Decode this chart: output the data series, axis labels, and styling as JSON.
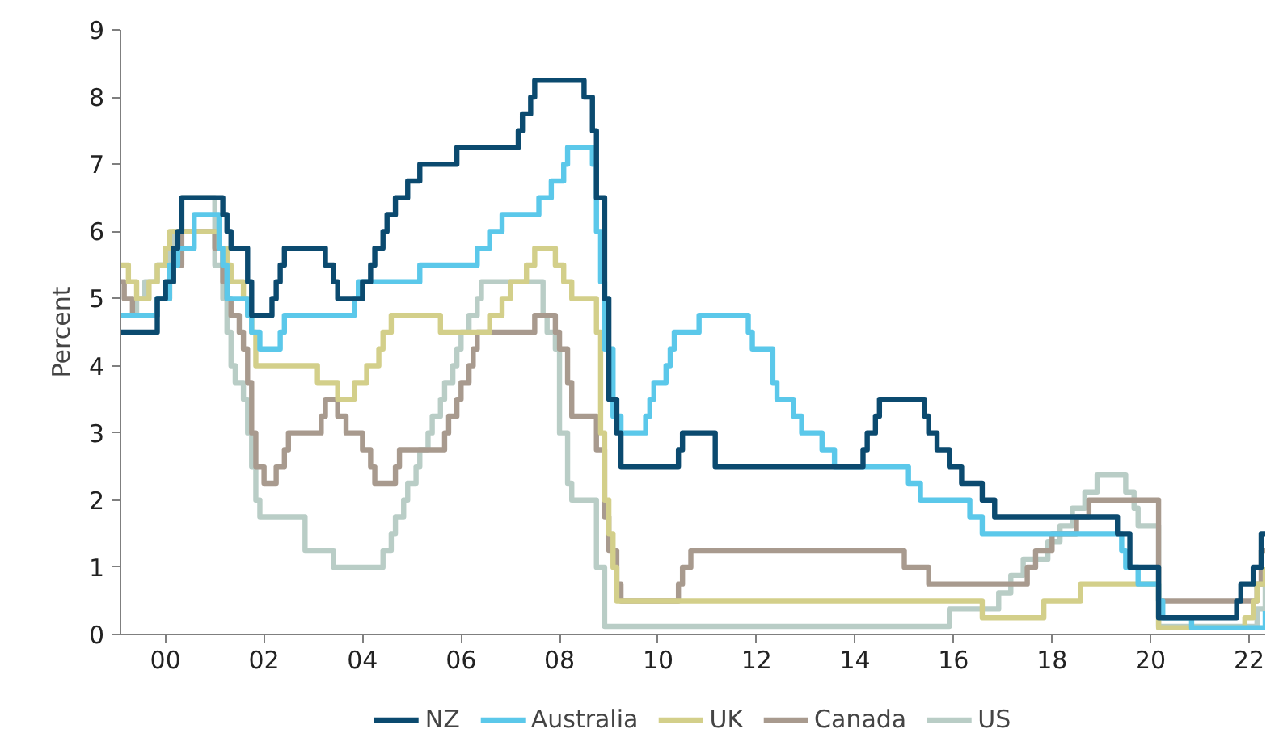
{
  "chart_data": {
    "type": "step",
    "ylabel": "Percent",
    "xlim": [
      "1999-02",
      "2022-05"
    ],
    "ylim": [
      0,
      9
    ],
    "yticks": [
      0,
      1,
      2,
      3,
      4,
      5,
      6,
      7,
      8,
      9
    ],
    "xticks": [
      {
        "value": "2000-01",
        "label": "00"
      },
      {
        "value": "2002-01",
        "label": "02"
      },
      {
        "value": "2004-01",
        "label": "04"
      },
      {
        "value": "2006-01",
        "label": "06"
      },
      {
        "value": "2008-01",
        "label": "08"
      },
      {
        "value": "2010-01",
        "label": "10"
      },
      {
        "value": "2012-01",
        "label": "12"
      },
      {
        "value": "2014-01",
        "label": "14"
      },
      {
        "value": "2016-01",
        "label": "16"
      },
      {
        "value": "2018-01",
        "label": "18"
      },
      {
        "value": "2020-01",
        "label": "20"
      },
      {
        "value": "2022-01",
        "label": "22"
      }
    ],
    "grid": false,
    "legend": "bottom",
    "marker": "none",
    "line_style": "solid",
    "series": [
      {
        "name": "NZ",
        "color": "#0b4a6f",
        "x": [
          "1999-02",
          "1999-11",
          "2000-01",
          "2000-03",
          "2000-04",
          "2000-05",
          "2001-03",
          "2001-04",
          "2001-05",
          "2001-09",
          "2001-10",
          "2002-03",
          "2002-04",
          "2002-05",
          "2002-06",
          "2003-04",
          "2003-06",
          "2003-07",
          "2004-01",
          "2004-03",
          "2004-04",
          "2004-06",
          "2004-07",
          "2004-09",
          "2004-12",
          "2005-03",
          "2005-12",
          "2007-03",
          "2007-04",
          "2007-06",
          "2007-07",
          "2008-07",
          "2008-09",
          "2008-10",
          "2008-12",
          "2009-01",
          "2009-03",
          "2009-04",
          "2010-06",
          "2010-07",
          "2011-03",
          "2014-03",
          "2014-04",
          "2014-06",
          "2014-07",
          "2015-06",
          "2015-07",
          "2015-09",
          "2015-12",
          "2016-03",
          "2016-08",
          "2016-11",
          "2019-05",
          "2019-08",
          "2020-03",
          "2021-10",
          "2021-11",
          "2022-02",
          "2022-04",
          "2022-05"
        ],
        "values": [
          4.5,
          5.0,
          5.25,
          5.75,
          6.0,
          6.5,
          6.25,
          6.0,
          5.75,
          5.25,
          4.75,
          5.0,
          5.25,
          5.5,
          5.75,
          5.5,
          5.25,
          5.0,
          5.25,
          5.5,
          5.75,
          6.0,
          6.25,
          6.5,
          6.75,
          7.0,
          7.25,
          7.5,
          7.75,
          8.0,
          8.25,
          8.0,
          7.5,
          6.5,
          5.0,
          3.5,
          3.0,
          2.5,
          2.75,
          3.0,
          2.5,
          2.75,
          3.0,
          3.25,
          3.5,
          3.25,
          3.0,
          2.75,
          2.5,
          2.25,
          2.0,
          1.75,
          1.5,
          1.0,
          0.25,
          0.5,
          0.75,
          1.0,
          1.5,
          1.5
        ]
      },
      {
        "name": "Australia",
        "color": "#5bc8ea",
        "x": [
          "1999-02",
          "1999-11",
          "2000-02",
          "2000-04",
          "2000-08",
          "2001-02",
          "2001-03",
          "2001-04",
          "2001-09",
          "2001-10",
          "2001-12",
          "2002-05",
          "2002-06",
          "2003-11",
          "2003-12",
          "2005-03",
          "2006-05",
          "2006-08",
          "2006-11",
          "2007-08",
          "2007-11",
          "2008-02",
          "2008-03",
          "2008-09",
          "2008-10",
          "2008-11",
          "2008-12",
          "2009-02",
          "2009-04",
          "2009-10",
          "2009-11",
          "2009-12",
          "2010-03",
          "2010-04",
          "2010-05",
          "2010-11",
          "2011-11",
          "2011-12",
          "2012-05",
          "2012-06",
          "2012-10",
          "2012-12",
          "2013-05",
          "2013-08",
          "2015-02",
          "2015-05",
          "2016-05",
          "2016-08",
          "2019-06",
          "2019-07",
          "2019-10",
          "2020-03",
          "2020-04",
          "2020-11",
          "2022-05"
        ],
        "values": [
          4.75,
          5.0,
          5.5,
          5.75,
          6.25,
          5.75,
          5.5,
          5.0,
          4.75,
          4.5,
          4.25,
          4.5,
          4.75,
          5.0,
          5.25,
          5.5,
          5.75,
          6.0,
          6.25,
          6.5,
          6.75,
          7.0,
          7.25,
          7.0,
          6.0,
          5.25,
          4.25,
          3.25,
          3.0,
          3.25,
          3.5,
          3.75,
          4.0,
          4.25,
          4.5,
          4.75,
          4.5,
          4.25,
          3.75,
          3.5,
          3.25,
          3.0,
          2.75,
          2.5,
          2.25,
          2.0,
          1.75,
          1.5,
          1.25,
          1.0,
          0.75,
          0.5,
          0.25,
          0.1,
          0.35
        ]
      },
      {
        "name": "UK",
        "color": "#d3cf8a",
        "x": [
          "1999-02",
          "1999-04",
          "1999-06",
          "1999-09",
          "1999-11",
          "2000-01",
          "2000-02",
          "2001-02",
          "2001-04",
          "2001-05",
          "2001-08",
          "2001-09",
          "2001-10",
          "2001-11",
          "2003-02",
          "2003-07",
          "2003-11",
          "2004-02",
          "2004-05",
          "2004-06",
          "2004-08",
          "2005-08",
          "2006-08",
          "2006-11",
          "2007-01",
          "2007-05",
          "2007-07",
          "2007-12",
          "2008-02",
          "2008-04",
          "2008-10",
          "2008-11",
          "2008-12",
          "2009-01",
          "2009-02",
          "2009-03",
          "2016-08",
          "2017-11",
          "2018-08",
          "2020-03",
          "2021-12",
          "2022-02",
          "2022-03",
          "2022-05"
        ],
        "values": [
          5.5,
          5.25,
          5.0,
          5.25,
          5.5,
          5.75,
          6.0,
          5.75,
          5.5,
          5.25,
          5.0,
          4.75,
          4.5,
          4.0,
          3.75,
          3.5,
          3.75,
          4.0,
          4.25,
          4.5,
          4.75,
          4.5,
          4.75,
          5.0,
          5.25,
          5.5,
          5.75,
          5.5,
          5.25,
          5.0,
          4.5,
          3.0,
          2.0,
          1.5,
          1.0,
          0.5,
          0.25,
          0.5,
          0.75,
          0.1,
          0.25,
          0.5,
          0.75,
          1.0
        ]
      },
      {
        "name": "Canada",
        "color": "#a89a8e",
        "x": [
          "1999-02",
          "1999-03",
          "1999-05",
          "1999-11",
          "2000-02",
          "2000-03",
          "2000-05",
          "2001-01",
          "2001-03",
          "2001-04",
          "2001-05",
          "2001-07",
          "2001-08",
          "2001-09",
          "2001-10",
          "2001-11",
          "2002-01",
          "2002-04",
          "2002-06",
          "2002-07",
          "2003-03",
          "2003-04",
          "2003-07",
          "2003-09",
          "2004-01",
          "2004-03",
          "2004-04",
          "2004-09",
          "2004-10",
          "2005-09",
          "2005-10",
          "2005-12",
          "2006-01",
          "2006-03",
          "2006-04",
          "2006-05",
          "2007-07",
          "2007-12",
          "2008-01",
          "2008-03",
          "2008-04",
          "2008-10",
          "2008-12",
          "2009-01",
          "2009-03",
          "2009-04",
          "2010-06",
          "2010-07",
          "2010-09",
          "2015-01",
          "2015-07",
          "2017-07",
          "2017-09",
          "2018-01",
          "2018-07",
          "2018-10",
          "2020-03",
          "2022-03",
          "2022-04",
          "2022-05"
        ],
        "values": [
          5.25,
          5.0,
          4.75,
          5.0,
          5.25,
          5.5,
          6.0,
          5.75,
          5.25,
          5.0,
          4.75,
          4.5,
          4.25,
          3.75,
          3.0,
          2.5,
          2.25,
          2.5,
          2.75,
          3.0,
          3.25,
          3.5,
          3.25,
          3.0,
          2.75,
          2.5,
          2.25,
          2.5,
          2.75,
          3.0,
          3.25,
          3.5,
          3.75,
          4.0,
          4.25,
          4.5,
          4.75,
          4.5,
          4.25,
          3.75,
          3.25,
          2.75,
          1.75,
          1.25,
          0.75,
          0.5,
          0.75,
          1.0,
          1.25,
          1.0,
          0.75,
          1.0,
          1.25,
          1.5,
          1.75,
          2.0,
          0.5,
          0.75,
          1.25,
          1.25
        ]
      },
      {
        "name": "US",
        "color": "#b9cdc6",
        "x": [
          "1999-02",
          "1999-06",
          "1999-08",
          "1999-11",
          "2000-02",
          "2000-03",
          "2000-05",
          "2001-01",
          "2001-03",
          "2001-04",
          "2001-05",
          "2001-06",
          "2001-08",
          "2001-09",
          "2001-10",
          "2001-11",
          "2001-12",
          "2002-11",
          "2003-06",
          "2004-06",
          "2004-08",
          "2004-09",
          "2004-11",
          "2004-12",
          "2005-02",
          "2005-03",
          "2005-05",
          "2005-06",
          "2005-08",
          "2005-09",
          "2005-11",
          "2005-12",
          "2006-01",
          "2006-03",
          "2006-05",
          "2006-06",
          "2007-09",
          "2007-10",
          "2007-12",
          "2008-01",
          "2008-03",
          "2008-04",
          "2008-10",
          "2008-12",
          "2015-12",
          "2016-12",
          "2017-03",
          "2017-06",
          "2017-12",
          "2018-03",
          "2018-06",
          "2018-09",
          "2018-12",
          "2019-07",
          "2019-09",
          "2019-10",
          "2020-03",
          "2022-03",
          "2022-05"
        ],
        "values": [
          4.75,
          5.0,
          5.25,
          5.5,
          5.75,
          6.0,
          6.5,
          5.5,
          5.0,
          4.5,
          4.0,
          3.75,
          3.5,
          3.0,
          2.5,
          2.0,
          1.75,
          1.25,
          1.0,
          1.25,
          1.5,
          1.75,
          2.0,
          2.25,
          2.5,
          2.75,
          3.0,
          3.25,
          3.5,
          3.75,
          4.0,
          4.25,
          4.5,
          4.75,
          5.0,
          5.25,
          4.75,
          4.5,
          4.25,
          3.0,
          2.25,
          2.0,
          1.0,
          0.12,
          0.38,
          0.62,
          0.88,
          1.12,
          1.38,
          1.62,
          1.88,
          2.12,
          2.38,
          2.12,
          1.88,
          1.62,
          0.12,
          0.38,
          0.88
        ]
      }
    ]
  }
}
